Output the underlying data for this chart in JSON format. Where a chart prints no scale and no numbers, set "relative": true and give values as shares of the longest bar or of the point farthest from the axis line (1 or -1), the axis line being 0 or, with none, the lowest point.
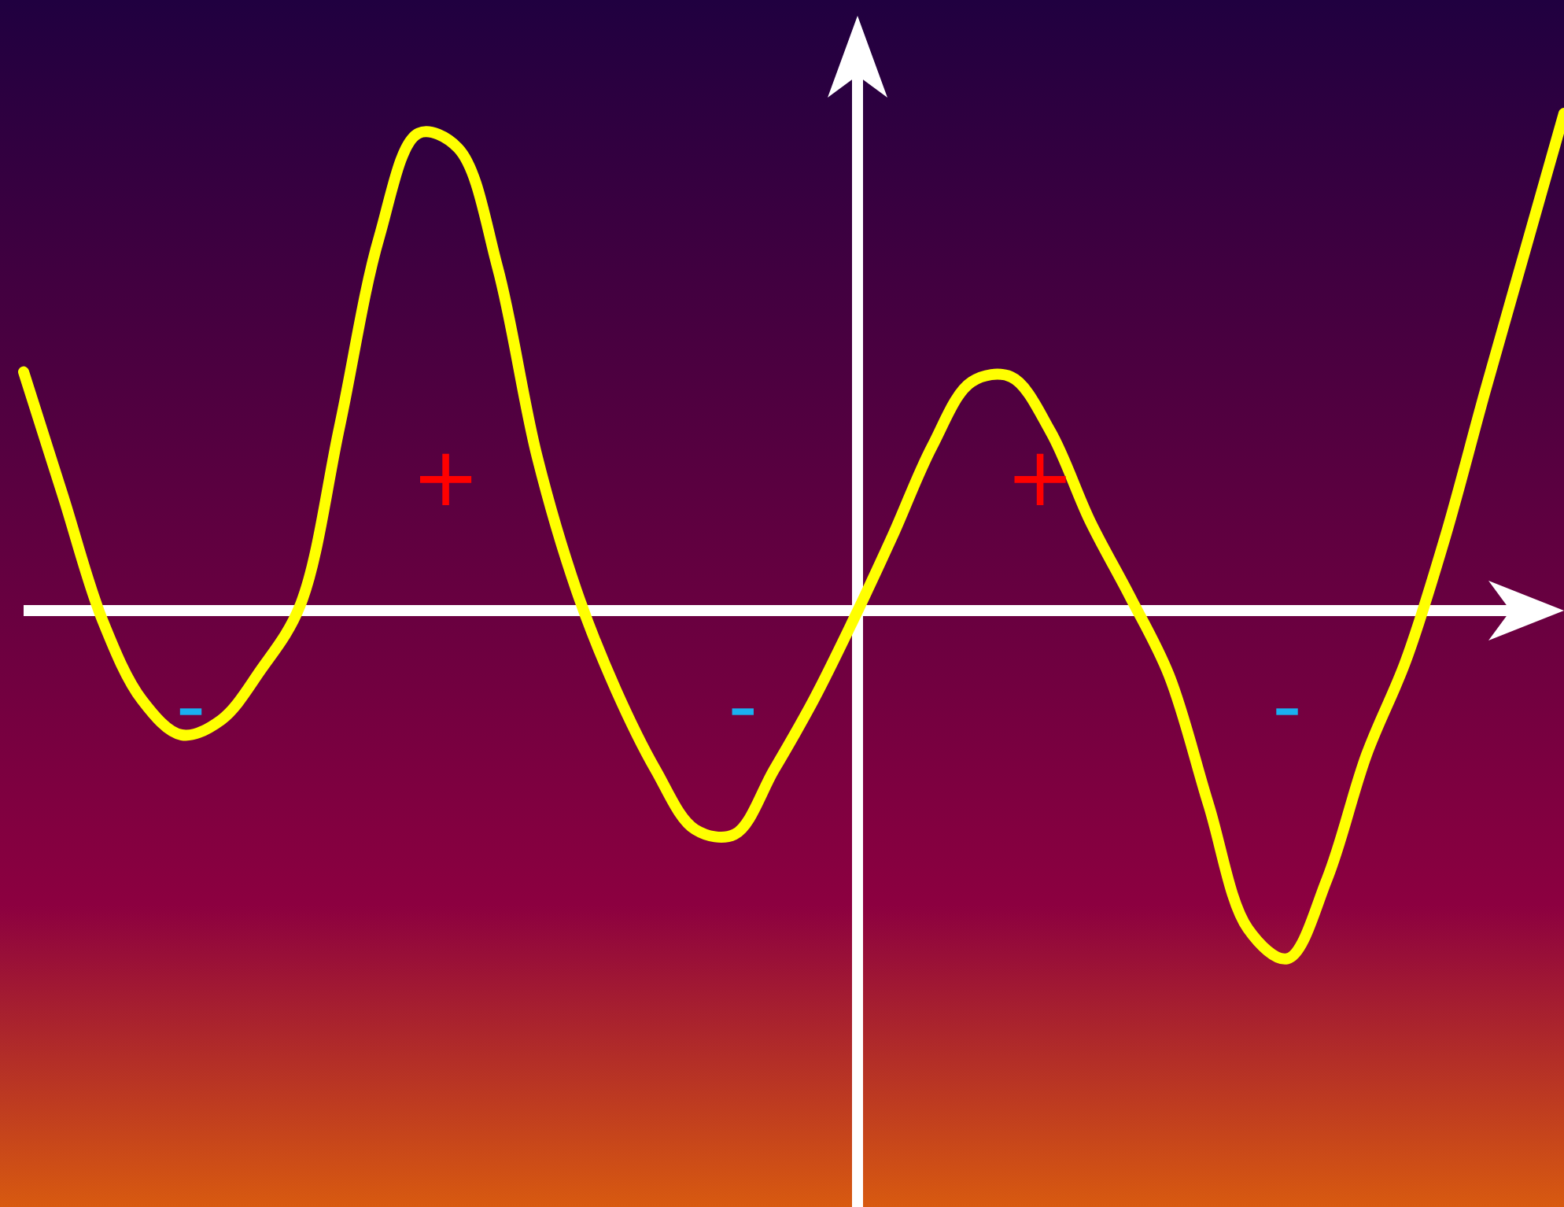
{
  "chart_data": {
    "type": "line",
    "relative": true,
    "line_style": "solid",
    "categories": [
      null,
      null,
      null,
      null,
      null,
      null,
      null,
      null,
      null,
      null,
      null,
      null,
      null,
      null,
      null,
      null,
      null,
      null,
      null,
      null,
      null,
      null,
      null,
      null,
      null,
      null,
      null,
      null,
      null,
      null,
      null,
      null,
      null,
      null,
      null,
      null,
      null,
      null,
      null,
      null
    ],
    "series": [
      {
        "color": "#ffff00",
        "values": [
          0.48,
          0.23,
          -0.02,
          -0.18,
          -0.25,
          -0.22,
          -0.12,
          0.01,
          0.37,
          0.75,
          0.96,
          0.93,
          0.69,
          0.31,
          0.04,
          -0.16,
          -0.32,
          -0.44,
          -0.45,
          -0.32,
          -0.18,
          -0.02,
          0.15,
          0.33,
          0.46,
          0.47,
          0.36,
          0.18,
          0.03,
          -0.13,
          -0.39,
          -0.64,
          -0.7,
          -0.54,
          -0.29,
          -0.1,
          0.15,
          0.44,
          0.72,
          1.0
        ]
      }
    ],
    "annotations": [
      "+",
      "+",
      "-",
      "-",
      "-"
    ]
  }
}
